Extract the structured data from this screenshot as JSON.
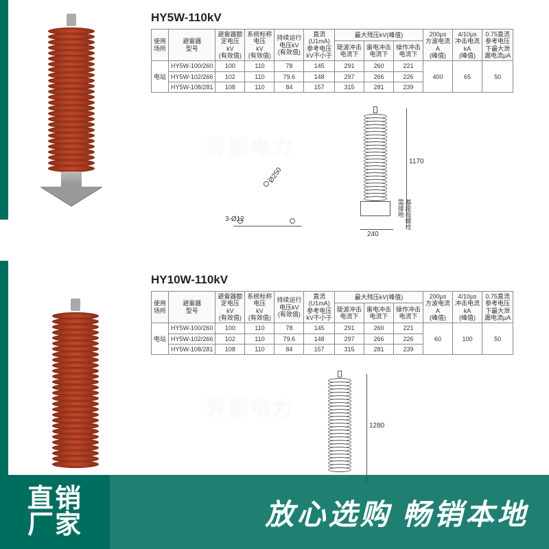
{
  "stripes": {
    "color": "#006e5f"
  },
  "section1": {
    "title": "HY5W-110kV",
    "headers": {
      "use_place": "使用\n场所",
      "model": "避雷器\n型号",
      "rated_v": "避雷器额\n定电压\nkV\n(有效值)",
      "sys_v": "系统标称\n电压\nkV\n(有效值)",
      "cont_v": "持续运行\n电压kV\n(有效值)",
      "dc_ref": "直流\n(U1mA)\n参考电压\nkV不小于",
      "max_res_group": "最大残压kV(峰值)",
      "steep": "陡波冲击\n电流下",
      "lightning": "雷电冲击\n电流下",
      "switch": "操作冲击\n电流下",
      "sq200": "200μs\n方波电流\nA\n(峰值)",
      "imp410": "4/10μs\n冲击电流\nkA\n(峰值)",
      "leak": "0.75直流\n参考电压\n下最大泄\n漏电流μA"
    },
    "place": "电站",
    "rows": [
      {
        "model": "HY5W-100/260",
        "rv": "100",
        "sv": "110",
        "cv": "78",
        "dc": "145",
        "st": "291",
        "lt": "260",
        "sw": "221"
      },
      {
        "model": "HY5W-102/266",
        "rv": "102",
        "sv": "110",
        "cv": "79.6",
        "dc": "148",
        "st": "297",
        "lt": "266",
        "sw": "226"
      },
      {
        "model": "HY5W-108/281",
        "rv": "108",
        "sv": "110",
        "cv": "84",
        "dc": "157",
        "st": "315",
        "lt": "281",
        "sw": "239"
      }
    ],
    "sq200": "400",
    "imp410": "65",
    "leak": "50",
    "dims": {
      "height": "1170",
      "base_w": "240",
      "tri_d": "Ø250",
      "bolt": "3-Ø12",
      "note": "基座板螺栓\n需接地"
    }
  },
  "section2": {
    "title": "HY10W-110kV",
    "headers": {
      "use_place": "使用\n场所",
      "model": "避雷器\n型号",
      "rated_v": "避雷器额\n定电压\nkV\n(有效值)",
      "sys_v": "系统标称\n电压\nkV\n(有效值)",
      "cont_v": "持续运行\n电压kV\n(有效值)",
      "dc_ref": "直流\n(U1mA)\n参考电压\nkV不小于",
      "max_res_group": "最大残压kV(峰值)",
      "steep": "陡波冲击\n电流下",
      "lightning": "雷电冲击\n电流下",
      "switch": "操作冲击\n电流下",
      "sq200": "200μs\n方波电流\nA\n(峰值)",
      "imp410": "4/10μs\n冲击电流\nkA\n(峰值)",
      "leak": "0.75直流\n参考电压\n下最大泄\n漏电流μA"
    },
    "place": "电站",
    "rows": [
      {
        "model": "HY5W-100/260",
        "rv": "100",
        "sv": "110",
        "cv": "78",
        "dc": "145",
        "st": "291",
        "lt": "260",
        "sw": "221"
      },
      {
        "model": "HY5W-102/266",
        "rv": "102",
        "sv": "110",
        "cv": "79.6",
        "dc": "148",
        "st": "297",
        "lt": "266",
        "sw": "226"
      },
      {
        "model": "HY5W-108/281",
        "rv": "108",
        "sv": "110",
        "cv": "84",
        "dc": "157",
        "st": "315",
        "lt": "281",
        "sw": "239"
      }
    ],
    "sq200": "60",
    "imp410": "100",
    "leak": "50",
    "dims": {
      "height": "1280"
    }
  },
  "overlay": {
    "badge_top": "直销",
    "badge_bottom": "厂家",
    "right": "放心选购  畅销本地"
  },
  "watermark": "羿振电力"
}
